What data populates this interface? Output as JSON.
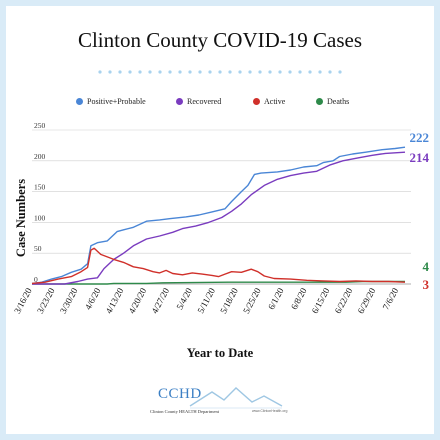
{
  "colors": {
    "positive": "#4a86d6",
    "recovered": "#7a3cbf",
    "active": "#d0302a",
    "deaths": "#2e8a4a",
    "dots": "#a9d2ee"
  },
  "footer": {
    "logo": "CCHD",
    "department": "Clinton County HEALTH Department",
    "url": "www.ClintonHealth.org"
  },
  "chart_data": {
    "type": "line",
    "title": "Clinton County COVID-19 Cases",
    "xlabel": "Year to Date",
    "ylabel": "Case Numbers",
    "ylim": [
      0,
      250
    ],
    "yticks": [
      0,
      50,
      100,
      150,
      200,
      250
    ],
    "grid": "horizontal",
    "legend_position": "top",
    "x_ticks": [
      "3/16/20",
      "3/23/20",
      "3/30/20",
      "4/6/20",
      "4/13/20",
      "4/20/20",
      "4/27/20",
      "5/4/20",
      "5/11/20",
      "5/18/20",
      "5/25/20",
      "6/1/20",
      "6/8/20",
      "6/15/20",
      "6/22/20",
      "6/29/20",
      "7/6/20"
    ],
    "x_range": [
      "3/16/20",
      "7/8/20"
    ],
    "series": [
      {
        "name": "Positive+Probable",
        "end_label": "222",
        "points": [
          [
            "3/16/20",
            1
          ],
          [
            "3/19/20",
            3
          ],
          [
            "3/22/20",
            8
          ],
          [
            "3/25/20",
            12
          ],
          [
            "3/28/20",
            19
          ],
          [
            "3/31/20",
            24
          ],
          [
            "4/2/20",
            33
          ],
          [
            "4/3/20",
            62
          ],
          [
            "4/5/20",
            67
          ],
          [
            "4/8/20",
            70
          ],
          [
            "4/11/20",
            85
          ],
          [
            "4/13/20",
            88
          ],
          [
            "4/16/20",
            92
          ],
          [
            "4/18/20",
            97
          ],
          [
            "4/20/20",
            102
          ],
          [
            "4/24/20",
            104
          ],
          [
            "4/27/20",
            106
          ],
          [
            "5/2/20",
            109
          ],
          [
            "5/6/20",
            112
          ],
          [
            "5/10/20",
            117
          ],
          [
            "5/14/20",
            122
          ],
          [
            "5/16/20",
            134
          ],
          [
            "5/19/20",
            150
          ],
          [
            "5/21/20",
            160
          ],
          [
            "5/23/20",
            178
          ],
          [
            "5/25/20",
            180
          ],
          [
            "5/30/20",
            182
          ],
          [
            "6/3/20",
            185
          ],
          [
            "6/7/20",
            190
          ],
          [
            "6/11/20",
            192
          ],
          [
            "6/13/20",
            197
          ],
          [
            "6/16/20",
            200
          ],
          [
            "6/18/20",
            207
          ],
          [
            "6/22/20",
            211
          ],
          [
            "6/26/20",
            214
          ],
          [
            "7/1/20",
            218
          ],
          [
            "7/5/20",
            220
          ],
          [
            "7/8/20",
            222
          ]
        ]
      },
      {
        "name": "Recovered",
        "end_label": "214",
        "points": [
          [
            "3/16/20",
            0
          ],
          [
            "3/26/20",
            0
          ],
          [
            "3/30/20",
            4
          ],
          [
            "4/2/20",
            8
          ],
          [
            "4/5/20",
            10
          ],
          [
            "4/7/20",
            25
          ],
          [
            "4/10/20",
            40
          ],
          [
            "4/13/20",
            50
          ],
          [
            "4/16/20",
            62
          ],
          [
            "4/20/20",
            73
          ],
          [
            "4/24/20",
            78
          ],
          [
            "4/28/20",
            84
          ],
          [
            "5/1/20",
            90
          ],
          [
            "5/5/20",
            94
          ],
          [
            "5/9/20",
            100
          ],
          [
            "5/13/20",
            108
          ],
          [
            "5/16/20",
            118
          ],
          [
            "5/19/20",
            130
          ],
          [
            "5/22/20",
            145
          ],
          [
            "5/26/20",
            160
          ],
          [
            "5/30/20",
            170
          ],
          [
            "6/3/20",
            176
          ],
          [
            "6/7/20",
            180
          ],
          [
            "6/11/20",
            183
          ],
          [
            "6/15/20",
            193
          ],
          [
            "6/19/20",
            200
          ],
          [
            "6/24/20",
            205
          ],
          [
            "6/28/20",
            209
          ],
          [
            "7/2/20",
            212
          ],
          [
            "7/8/20",
            214
          ]
        ]
      },
      {
        "name": "Active",
        "end_label": "3",
        "points": [
          [
            "3/16/20",
            1
          ],
          [
            "3/20/20",
            3
          ],
          [
            "3/24/20",
            8
          ],
          [
            "3/28/20",
            12
          ],
          [
            "3/31/20",
            20
          ],
          [
            "4/2/20",
            27
          ],
          [
            "4/3/20",
            55
          ],
          [
            "4/4/20",
            58
          ],
          [
            "4/6/20",
            48
          ],
          [
            "4/8/20",
            44
          ],
          [
            "4/10/20",
            40
          ],
          [
            "4/13/20",
            35
          ],
          [
            "4/16/20",
            28
          ],
          [
            "4/19/20",
            25
          ],
          [
            "4/22/20",
            20
          ],
          [
            "4/24/20",
            18
          ],
          [
            "4/26/20",
            22
          ],
          [
            "4/28/20",
            17
          ],
          [
            "5/1/20",
            15
          ],
          [
            "5/4/20",
            18
          ],
          [
            "5/7/20",
            16
          ],
          [
            "5/10/20",
            14
          ],
          [
            "5/12/20",
            12
          ],
          [
            "5/14/20",
            16
          ],
          [
            "5/16/20",
            20
          ],
          [
            "5/19/20",
            19
          ],
          [
            "5/22/20",
            24
          ],
          [
            "5/24/20",
            20
          ],
          [
            "5/26/20",
            13
          ],
          [
            "5/29/20",
            9
          ],
          [
            "6/3/20",
            8
          ],
          [
            "6/8/20",
            6
          ],
          [
            "6/13/20",
            5
          ],
          [
            "6/18/20",
            4
          ],
          [
            "6/23/20",
            5
          ],
          [
            "6/28/20",
            4
          ],
          [
            "7/3/20",
            4
          ],
          [
            "7/8/20",
            3
          ]
        ]
      },
      {
        "name": "Deaths",
        "end_label": "4",
        "points": [
          [
            "3/16/20",
            0
          ],
          [
            "4/8/20",
            0
          ],
          [
            "4/10/20",
            1
          ],
          [
            "4/20/20",
            1
          ],
          [
            "4/25/20",
            2
          ],
          [
            "5/15/20",
            3
          ],
          [
            "6/20/20",
            3
          ],
          [
            "6/25/20",
            4
          ],
          [
            "7/8/20",
            4
          ]
        ]
      }
    ]
  }
}
